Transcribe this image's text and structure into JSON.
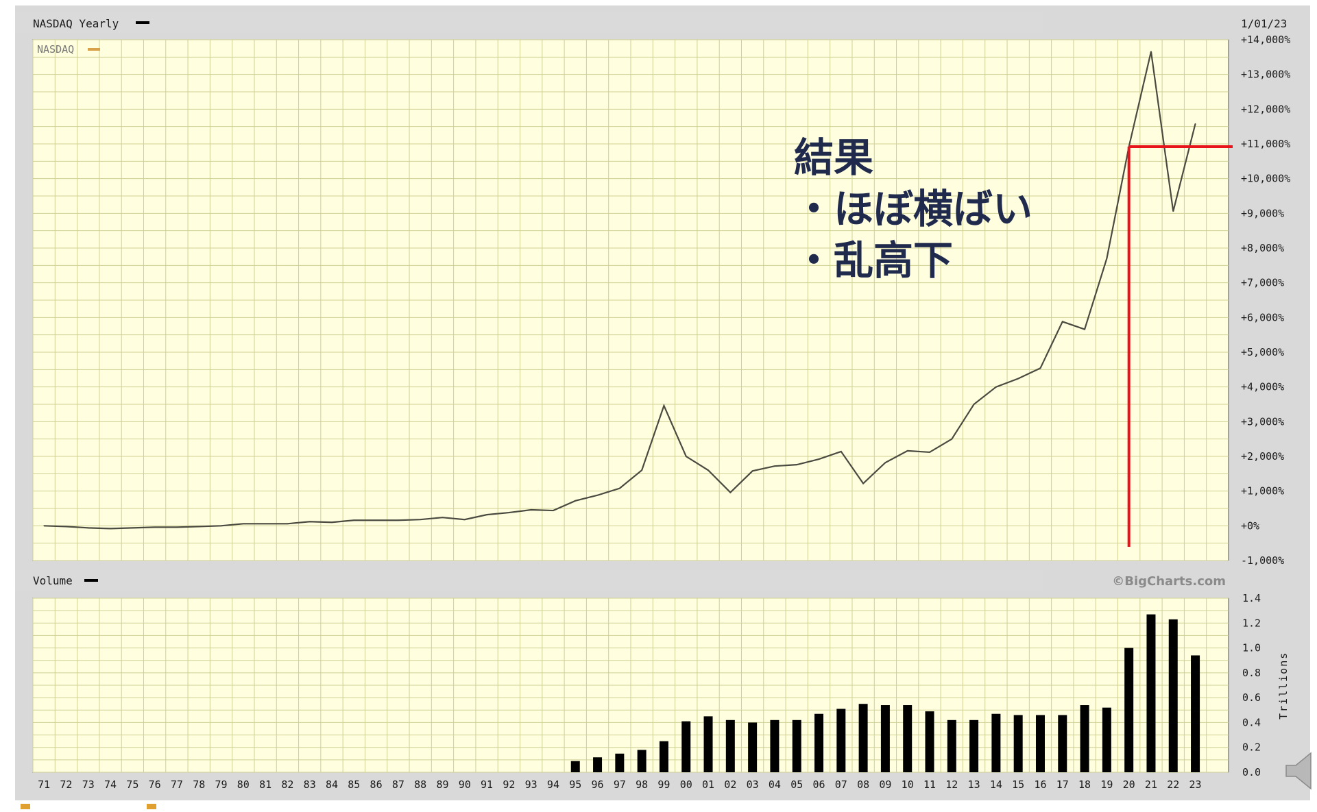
{
  "header": {
    "title": "NASDAQ Yearly",
    "date": "1/01/23"
  },
  "price_legend": "NASDAQ",
  "volume_header": "Volume",
  "copyright": "©BigCharts.com",
  "annotation": {
    "line1": "結果",
    "line2": "・ほぼ横ばい",
    "line3": "・乱高下"
  },
  "colors": {
    "plot_bg": "#ffffe0",
    "grid": "#cfcf95",
    "line": "#4a4a40",
    "bar": "#000000",
    "accent": "#e8141c",
    "frame": "#d9d9d9",
    "legend_swatch": "#d9a24a"
  },
  "icons": {
    "speaker": "speaker-icon"
  },
  "chart_data": [
    {
      "type": "line",
      "title": "NASDAQ Yearly",
      "series": [
        {
          "name": "NASDAQ",
          "x": [
            "71",
            "72",
            "73",
            "74",
            "75",
            "76",
            "77",
            "78",
            "79",
            "80",
            "81",
            "82",
            "83",
            "84",
            "85",
            "86",
            "87",
            "88",
            "89",
            "90",
            "91",
            "92",
            "93",
            "94",
            "95",
            "96",
            "97",
            "98",
            "99",
            "00",
            "01",
            "02",
            "03",
            "04",
            "05",
            "06",
            "07",
            "08",
            "09",
            "10",
            "11",
            "12",
            "13",
            "14",
            "15",
            "16",
            "17",
            "18",
            "19",
            "20",
            "21",
            "22",
            "23"
          ],
          "values": [
            0,
            -20,
            -60,
            -80,
            -60,
            -40,
            -40,
            -20,
            0,
            60,
            60,
            60,
            120,
            100,
            160,
            160,
            160,
            180,
            240,
            180,
            320,
            380,
            460,
            440,
            720,
            880,
            1080,
            1600,
            3460,
            2000,
            1600,
            960,
            1580,
            1720,
            1760,
            1920,
            2140,
            1220,
            1820,
            2160,
            2120,
            2500,
            3500,
            4000,
            4240,
            4540,
            5880,
            5660,
            7700,
            10920,
            13660,
            9060,
            11580
          ]
        }
      ],
      "xlabel": "",
      "ylabel": "",
      "ylim": [
        -1000,
        14000
      ],
      "y_ticks": [
        "+14,000%",
        "+13,000%",
        "+12,000%",
        "+11,000%",
        "+10,000%",
        "+9,000%",
        "+8,000%",
        "+7,000%",
        "+6,000%",
        "+5,000%",
        "+4,000%",
        "+3,000%",
        "+2,000%",
        "+1,000%",
        "+0%",
        "-1,000%"
      ],
      "grid": true,
      "legend_position": "top-left"
    },
    {
      "type": "bar",
      "title": "Volume",
      "categories": [
        "71",
        "72",
        "73",
        "74",
        "75",
        "76",
        "77",
        "78",
        "79",
        "80",
        "81",
        "82",
        "83",
        "84",
        "85",
        "86",
        "87",
        "88",
        "89",
        "90",
        "91",
        "92",
        "93",
        "94",
        "95",
        "96",
        "97",
        "98",
        "99",
        "00",
        "01",
        "02",
        "03",
        "04",
        "05",
        "06",
        "07",
        "08",
        "09",
        "10",
        "11",
        "12",
        "13",
        "14",
        "15",
        "16",
        "17",
        "18",
        "19",
        "20",
        "21",
        "22",
        "23"
      ],
      "values": [
        0,
        0,
        0,
        0,
        0,
        0,
        0,
        0,
        0,
        0,
        0,
        0,
        0,
        0,
        0,
        0,
        0,
        0,
        0,
        0,
        0,
        0,
        0,
        0,
        0.09,
        0.12,
        0.15,
        0.18,
        0.25,
        0.41,
        0.45,
        0.42,
        0.4,
        0.42,
        0.42,
        0.47,
        0.51,
        0.55,
        0.54,
        0.54,
        0.49,
        0.42,
        0.42,
        0.47,
        0.46,
        0.46,
        0.46,
        0.54,
        0.52,
        1.0,
        1.27,
        1.23,
        0.94
      ],
      "ylabel": "Trillions",
      "ylim": [
        0,
        1.4
      ],
      "y_ticks": [
        "1.4",
        "1.2",
        "1.0",
        "0.8",
        "0.6",
        "0.4",
        "0.2",
        "0.0"
      ],
      "grid": true
    }
  ]
}
